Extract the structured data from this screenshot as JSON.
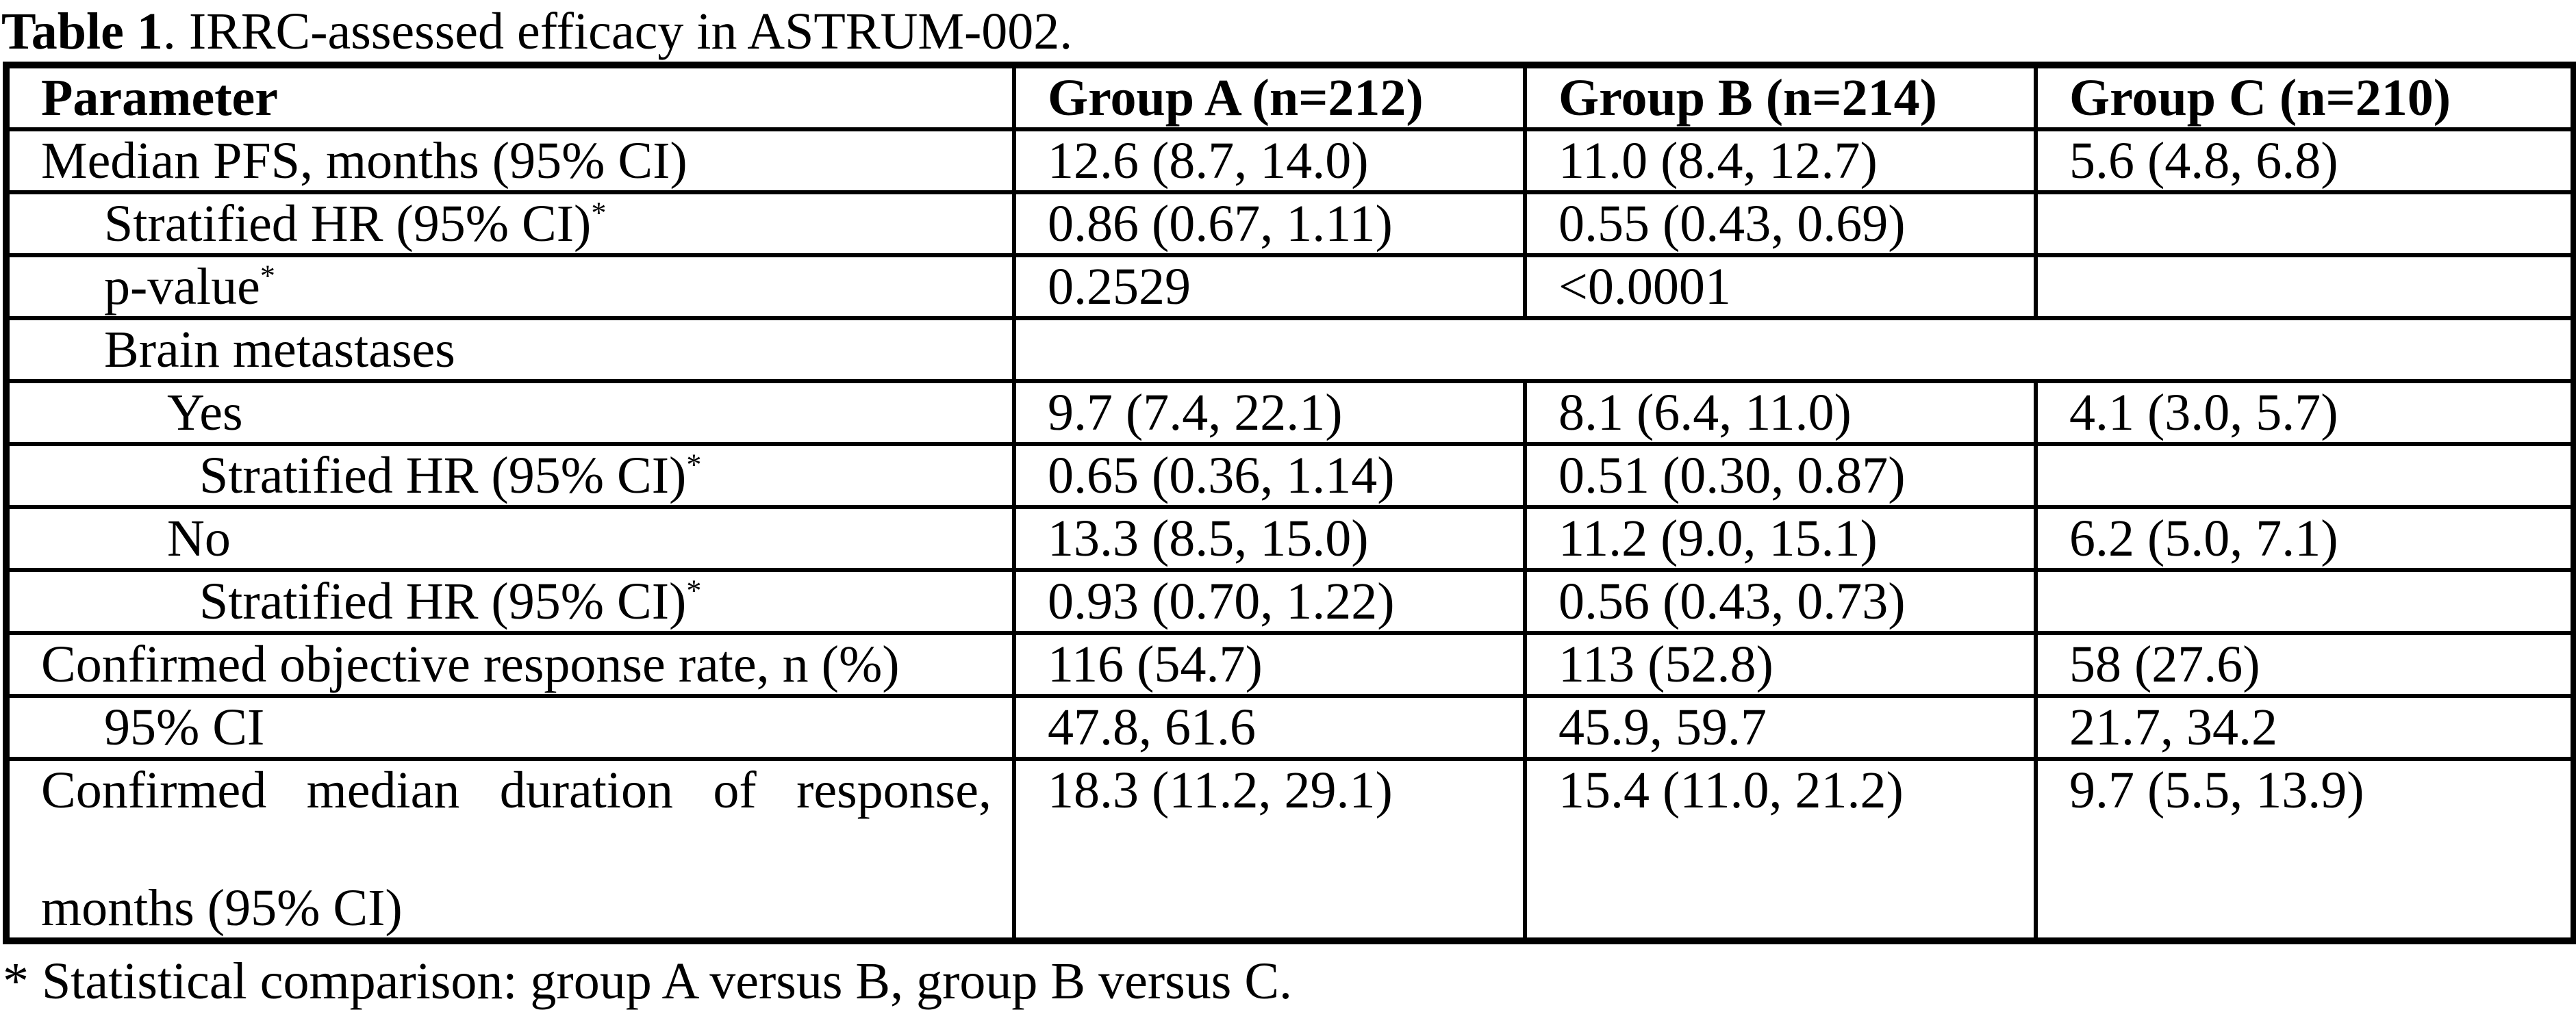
{
  "colors": {
    "text": "#000000",
    "background": "#ffffff",
    "border": "#000000"
  },
  "title": {
    "bold": "Table 1",
    "rest": ". IRRC-assessed efficacy in ASTRUM-002."
  },
  "table": {
    "headers": [
      "Parameter",
      "Group A (n=212)",
      "Group B (n=214)",
      "Group C (n=210)"
    ],
    "rows": [
      {
        "param": "Median PFS, months (95% CI)",
        "sup": "",
        "a": "12.6 (8.7, 14.0)",
        "b": "11.0 (8.4, 12.7)",
        "c": "5.6 (4.8, 6.8)"
      },
      {
        "param": "Stratified HR (95% CI)",
        "sup": "*",
        "a": "0.86 (0.67, 1.11)",
        "b": "0.55 (0.43, 0.69)",
        "c": ""
      },
      {
        "param": "p-value",
        "sup": "*",
        "a": "0.2529",
        "b": "<0.0001",
        "c": ""
      },
      {
        "param": "Brain metastases",
        "sup": "",
        "merged": ""
      },
      {
        "param": "Yes",
        "sup": "",
        "a": "9.7 (7.4, 22.1)",
        "b": "8.1 (6.4, 11.0)",
        "c": "4.1 (3.0, 5.7)"
      },
      {
        "param": "Stratified HR (95% CI)",
        "sup": "*",
        "a": "0.65 (0.36, 1.14)",
        "b": "0.51 (0.30, 0.87)",
        "c": ""
      },
      {
        "param": "No",
        "sup": "",
        "a": "13.3 (8.5, 15.0)",
        "b": "11.2 (9.0, 15.1)",
        "c": "6.2 (5.0, 7.1)"
      },
      {
        "param": "Stratified HR (95% CI)",
        "sup": "*",
        "a": "0.93 (0.70, 1.22)",
        "b": "0.56 (0.43, 0.73)",
        "c": ""
      },
      {
        "param": "Confirmed objective response rate, n (%)",
        "sup": "",
        "a": "116 (54.7)",
        "b": "113 (52.8)",
        "c": "58 (27.6)"
      },
      {
        "param": "95% CI",
        "sup": "",
        "a": "47.8, 61.6",
        "b": "45.9, 59.7",
        "c": "21.7, 34.2"
      },
      {
        "param_lines": [
          "Confirmed median duration of response,",
          "months (95% CI)"
        ],
        "sup": "",
        "a": "18.3 (11.2, 29.1)",
        "b": "15.4 (11.0, 21.2)",
        "c": "9.7 (5.5, 13.9)"
      }
    ]
  },
  "footnote": "* Statistical comparison: group A versus B, group B versus C."
}
